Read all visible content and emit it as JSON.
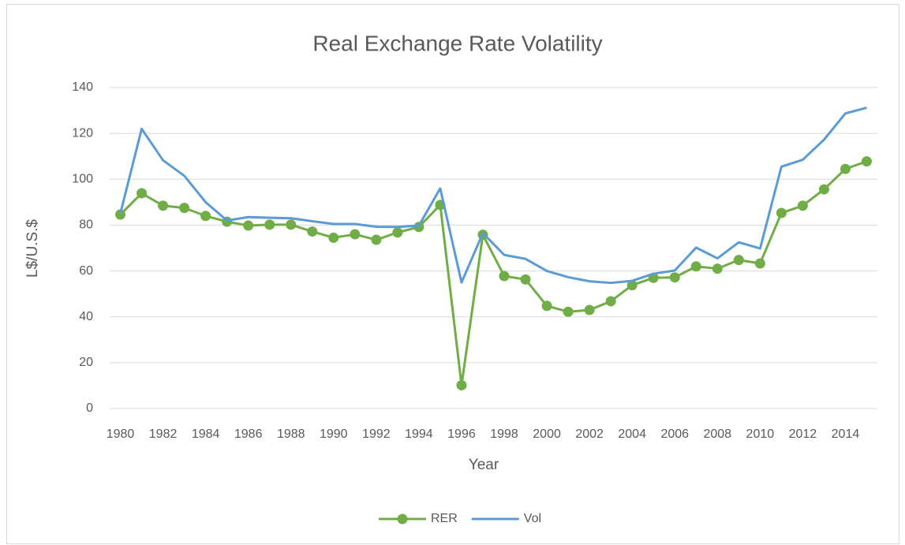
{
  "chart_data": {
    "type": "line",
    "title": "Real Exchange Rate Volatility",
    "x_label": "Year",
    "y_label": "L$/U.S.$",
    "categories": [
      "1980",
      null,
      "1982",
      null,
      "1984",
      null,
      "1986",
      null,
      "1988",
      null,
      "1990",
      null,
      "1992",
      null,
      "1994",
      null,
      "1996",
      null,
      "1998",
      null,
      "2000",
      null,
      "2002",
      null,
      "2004",
      null,
      "2006",
      null,
      "2008",
      null,
      "2010",
      null,
      "2012",
      null,
      "2014",
      null
    ],
    "series": [
      {
        "name": "RER",
        "color": "#70ad47",
        "markers": true,
        "values": [
          84.6,
          93.9,
          88.5,
          87.5,
          84,
          81.5,
          79.8,
          80.2,
          80.2,
          77.2,
          74.5,
          76,
          73.6,
          76.8,
          79.2,
          88.8,
          10.2,
          75.8,
          57.8,
          56.3,
          44.8,
          42.2,
          43,
          46.8,
          53.8,
          57,
          57.2,
          62,
          61,
          64.8,
          63.3,
          85.3,
          88.5,
          95.6,
          104.5,
          107.8
        ]
      },
      {
        "name": "Vol",
        "color": "#5b9bd5",
        "markers": false,
        "values": [
          85,
          122,
          108.3,
          101.5,
          90,
          82,
          83.5,
          83.2,
          83,
          81.7,
          80.5,
          80.5,
          79.3,
          79.2,
          79.8,
          96,
          55,
          76.5,
          67,
          65.3,
          60,
          57.3,
          55.5,
          54.8,
          55.7,
          58.8,
          60.2,
          70.2,
          65.5,
          72.5,
          69.8,
          105.5,
          108.5,
          117.3,
          128.7,
          131.2
        ]
      }
    ],
    "ylim": [
      0,
      140
    ],
    "yticks": [
      0,
      20,
      40,
      60,
      80,
      100,
      120,
      140
    ],
    "grid": true,
    "legend": "bottom"
  }
}
